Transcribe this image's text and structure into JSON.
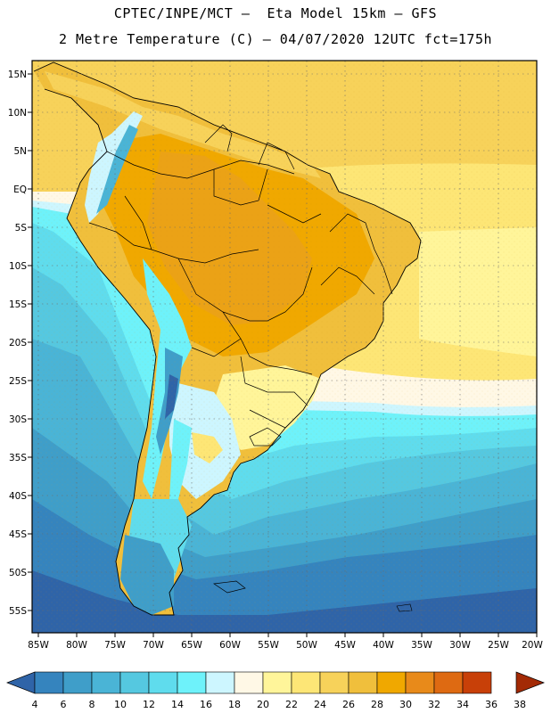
{
  "header": {
    "title_line1": "CPTEC/INPE/MCT –  Eta Model 15km – GFS",
    "title_line2": "2 Metre Temperature (C) – 04/07/2020 12UTC fct=175h"
  },
  "axes": {
    "lat_labels": [
      "15N",
      "10N",
      "5N",
      "EQ",
      "5S",
      "10S",
      "15S",
      "20S",
      "25S",
      "30S",
      "35S",
      "40S",
      "45S",
      "50S",
      "55S"
    ],
    "lon_labels": [
      "85W",
      "80W",
      "75W",
      "70W",
      "65W",
      "60W",
      "55W",
      "50W",
      "45W",
      "40W",
      "35W",
      "30W",
      "25W",
      "20W"
    ]
  },
  "colorbar": {
    "labels": [
      "4",
      "6",
      "8",
      "10",
      "12",
      "14",
      "16",
      "18",
      "20",
      "22",
      "24",
      "26",
      "28",
      "30",
      "32",
      "34",
      "36",
      "38"
    ],
    "colors": [
      "#2f64a8",
      "#3584be",
      "#3f9ec9",
      "#4ab4d6",
      "#55c8e0",
      "#5fdced",
      "#6ef2fa",
      "#cdf6ff",
      "#fff8e6",
      "#fff59a",
      "#fde676",
      "#f7d25a",
      "#f0bf3c",
      "#f0a800",
      "#e88a1a",
      "#de6a12",
      "#c84008",
      "#a32a05"
    ]
  }
}
